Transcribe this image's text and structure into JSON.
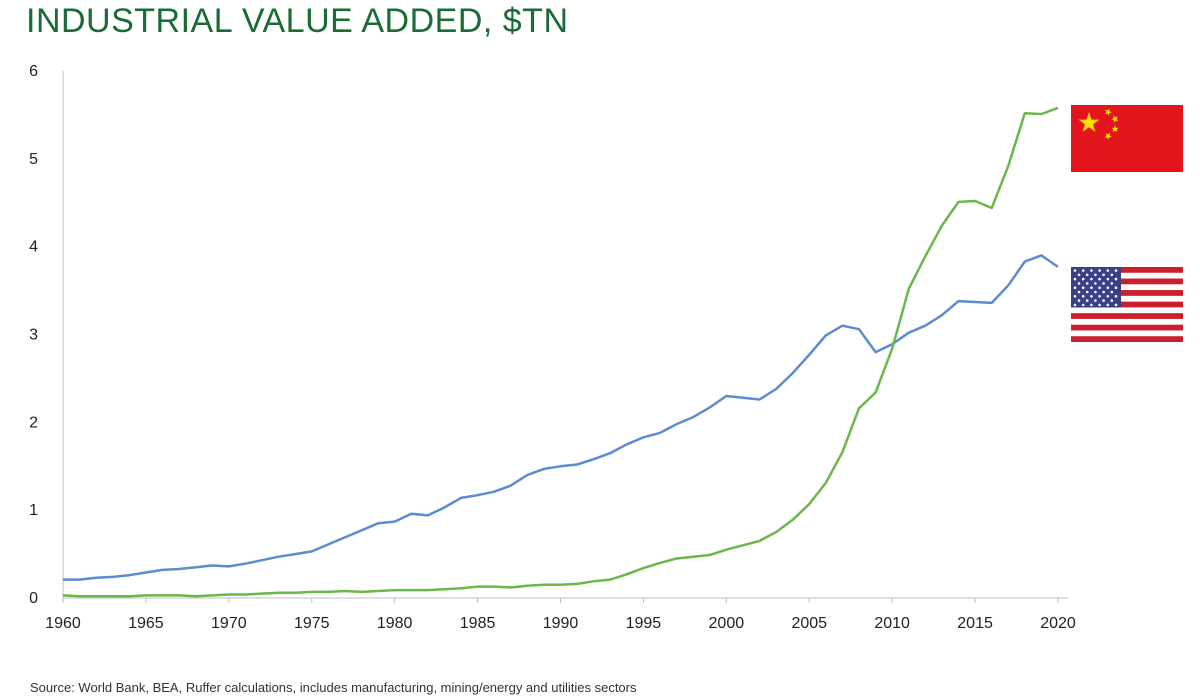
{
  "title": "INDUSTRIAL VALUE ADDED, $TN",
  "source": "Source: World Bank, BEA, Ruffer calculations, includes manufacturing, mining/energy and utilities sectors",
  "chart_data": {
    "type": "line",
    "title": "INDUSTRIAL VALUE ADDED, $TN",
    "xlabel": "",
    "ylabel": "",
    "xlim": [
      1960,
      2020
    ],
    "ylim": [
      0,
      6
    ],
    "x_ticks": [
      1960,
      1965,
      1970,
      1975,
      1980,
      1985,
      1990,
      1995,
      2000,
      2005,
      2010,
      2015,
      2020
    ],
    "y_ticks": [
      0,
      1,
      2,
      3,
      4,
      5,
      6
    ],
    "grid": false,
    "legend": "flags at right edge (China flag = green series, US flag = blue series)",
    "x": [
      1960,
      1961,
      1962,
      1963,
      1964,
      1965,
      1966,
      1967,
      1968,
      1969,
      1970,
      1971,
      1972,
      1973,
      1974,
      1975,
      1976,
      1977,
      1978,
      1979,
      1980,
      1981,
      1982,
      1983,
      1984,
      1985,
      1986,
      1987,
      1988,
      1989,
      1990,
      1991,
      1992,
      1993,
      1994,
      1995,
      1996,
      1997,
      1998,
      1999,
      2000,
      2001,
      2002,
      2003,
      2004,
      2005,
      2006,
      2007,
      2008,
      2009,
      2010,
      2011,
      2012,
      2013,
      2014,
      2015,
      2016,
      2017,
      2018,
      2019,
      2020
    ],
    "series": [
      {
        "color": "#5b8bd0",
        "flag": "us-flag",
        "values": [
          0.21,
          0.21,
          0.23,
          0.24,
          0.26,
          0.29,
          0.32,
          0.33,
          0.35,
          0.37,
          0.36,
          0.39,
          0.43,
          0.47,
          0.5,
          0.53,
          0.61,
          0.69,
          0.77,
          0.85,
          0.87,
          0.96,
          0.94,
          1.03,
          1.14,
          1.17,
          1.21,
          1.28,
          1.4,
          1.47,
          1.5,
          1.52,
          1.58,
          1.65,
          1.75,
          1.83,
          1.88,
          1.98,
          2.06,
          2.17,
          2.3,
          2.28,
          2.26,
          2.38,
          2.56,
          2.77,
          2.99,
          3.1,
          3.06,
          2.8,
          2.89,
          3.02,
          3.1,
          3.22,
          3.38,
          3.37,
          3.36,
          3.56,
          3.83,
          3.9,
          3.77
        ]
      },
      {
        "color": "#6ab84a",
        "flag": "china-flag",
        "values": [
          0.03,
          0.02,
          0.02,
          0.02,
          0.02,
          0.03,
          0.03,
          0.03,
          0.02,
          0.03,
          0.04,
          0.04,
          0.05,
          0.06,
          0.06,
          0.07,
          0.07,
          0.08,
          0.07,
          0.08,
          0.09,
          0.09,
          0.09,
          0.1,
          0.11,
          0.13,
          0.13,
          0.12,
          0.14,
          0.15,
          0.15,
          0.16,
          0.19,
          0.21,
          0.27,
          0.34,
          0.4,
          0.45,
          0.47,
          0.49,
          0.55,
          0.6,
          0.65,
          0.75,
          0.89,
          1.07,
          1.31,
          1.66,
          2.16,
          2.34,
          2.84,
          3.52,
          3.89,
          4.24,
          4.51,
          4.52,
          4.44,
          4.92,
          5.52,
          5.51,
          5.58
        ]
      }
    ]
  },
  "colors": {
    "title": "#1a6b34",
    "china_red": "#e3141c",
    "china_star": "#ffde00",
    "us_red": "#cc1f2d",
    "us_blue": "#3a3f87"
  },
  "icons": [
    "china-flag",
    "us-flag",
    "star-icon"
  ]
}
